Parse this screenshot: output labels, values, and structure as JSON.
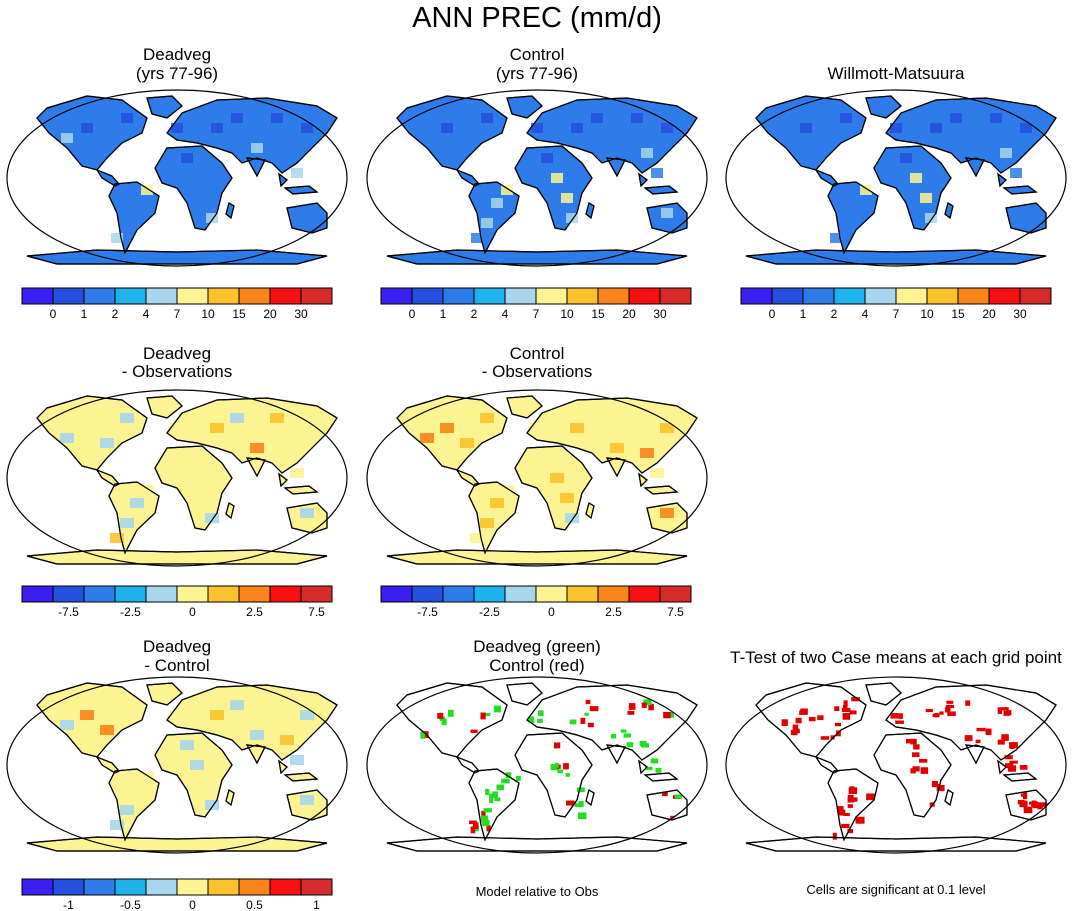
{
  "title": "ANN PREC (mm/d)",
  "palette": [
    "#3a1ff0",
    "#2450de",
    "#2e7bea",
    "#20b2ec",
    "#a8d6ec",
    "#fcf492",
    "#fbc22e",
    "#f9841a",
    "#f80f0f",
    "#d62b2b"
  ],
  "colorbars": {
    "absolute": [
      "0",
      "1",
      "2",
      "4",
      "7",
      "10",
      "15",
      "20",
      "30"
    ],
    "difference_obs": [
      "",
      "-7.5",
      "",
      "-2.5",
      "",
      "0",
      "",
      "2.5",
      "",
      "7.5"
    ],
    "difference_ctrl": [
      "",
      "-1",
      "",
      "-0.5",
      "",
      "0",
      "",
      "0.5",
      "",
      "1"
    ]
  },
  "panels": [
    {
      "title_line1": "Deadveg",
      "title_line2": "(yrs 77-96)",
      "field": "absolute"
    },
    {
      "title_line1": "Control",
      "title_line2": "(yrs 77-96)",
      "field": "absolute"
    },
    {
      "title_line1": "Willmott-Matsuura",
      "title_line2": "",
      "field": "absolute"
    },
    {
      "title_line1": "Deadveg",
      "title_line2": "- Observations",
      "field": "difference"
    },
    {
      "title_line1": "Control",
      "title_line2": "- Observations",
      "field": "difference"
    },
    {
      "title_line1": "Deadveg",
      "title_line2": "- Control",
      "field": "difference"
    },
    {
      "title_line1": "Deadveg (green)",
      "title_line2": "Control (red)",
      "field": "comparison"
    },
    {
      "title_line1": "T-Test of two Case means at each grid point",
      "title_line2": "",
      "field": "significance"
    }
  ],
  "notes": {
    "comparison": "Model relative to Obs",
    "significance": "Cells are significant at 0.1 level"
  },
  "chart_data": {
    "type": "heatmap",
    "title": "ANN PREC (mm/d)",
    "variable": "Annual precipitation",
    "units": "mm/d",
    "projection": "Robinson",
    "absolute_levels": [
      0,
      1,
      2,
      4,
      7,
      10,
      15,
      20,
      30
    ],
    "difference_obs_levels": [
      -7.5,
      -2.5,
      0,
      2.5,
      7.5
    ],
    "difference_ctrl_levels": [
      -1,
      -0.5,
      0,
      0.5,
      1
    ],
    "comparison_colors": {
      "deadveg": "#22dd22",
      "control": "#e00000"
    },
    "significance_level": 0.1
  }
}
